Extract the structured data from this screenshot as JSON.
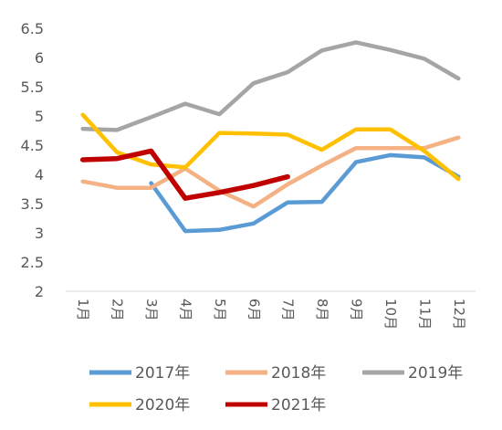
{
  "chart_data": {
    "type": "line",
    "categories": [
      "1月",
      "2月",
      "3月",
      "4月",
      "5月",
      "6月",
      "7月",
      "8月",
      "9月",
      "10月",
      "11月",
      "12月"
    ],
    "ylim": [
      2,
      6.5
    ],
    "yticks": [
      "2",
      "2.5",
      "3",
      "3.5",
      "4",
      "4.5",
      "5",
      "5.5",
      "6",
      "6.5"
    ],
    "grid": false,
    "legend_position": "bottom",
    "series": [
      {
        "name": "2017年",
        "color": "#5B9BD5",
        "values": [
          null,
          null,
          3.85,
          3.03,
          3.05,
          3.16,
          3.52,
          3.53,
          4.21,
          4.33,
          4.29,
          3.96
        ]
      },
      {
        "name": "2018年",
        "color": "#F4B183",
        "values": [
          3.88,
          3.77,
          3.77,
          4.1,
          3.72,
          3.45,
          3.83,
          4.15,
          4.45,
          4.45,
          4.45,
          4.63
        ]
      },
      {
        "name": "2019年",
        "color": "#A5A5A5",
        "values": [
          4.78,
          4.76,
          4.98,
          5.21,
          5.03,
          5.56,
          5.75,
          6.12,
          6.26,
          6.13,
          5.98,
          5.64
        ]
      },
      {
        "name": "2020年",
        "color": "#FFC000",
        "values": [
          5.02,
          4.38,
          4.17,
          4.12,
          4.71,
          4.7,
          4.68,
          4.42,
          4.77,
          4.77,
          4.4,
          3.92
        ]
      },
      {
        "name": "2021年",
        "color": "#C00000",
        "values": [
          4.25,
          4.27,
          4.4,
          3.59,
          3.69,
          3.81,
          3.96,
          null,
          null,
          null,
          null,
          null
        ]
      }
    ]
  }
}
